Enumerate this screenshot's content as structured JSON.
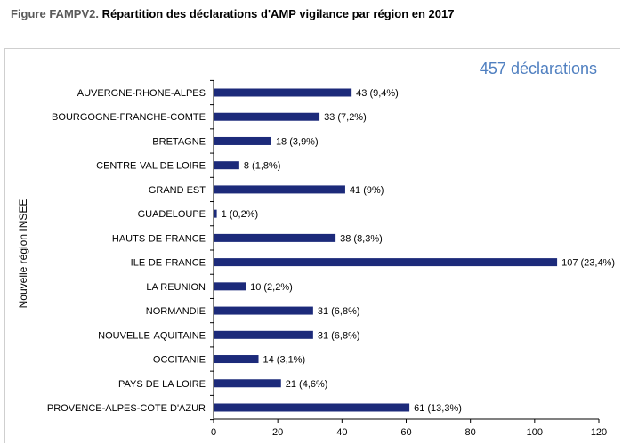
{
  "title": {
    "prefix": "Figure FAMPV2.",
    "text": "Répartition des déclarations d'AMP vigilance par région en 2017"
  },
  "colors": {
    "bar": "#1c2a7a",
    "annotation": "#4f7fc0",
    "axis": "#000000"
  },
  "chart_data": {
    "type": "bar",
    "orientation": "horizontal",
    "title": "",
    "ylabel": "Nouvelle  région INSEE",
    "xlabel": "",
    "xlim": [
      0,
      120
    ],
    "xticks": [
      0,
      20,
      40,
      60,
      80,
      100,
      120
    ],
    "grid": false,
    "annotation": "457 déclarations",
    "categories": [
      "AUVERGNE-RHONE-ALPES",
      "BOURGOGNE-FRANCHE-COMTE",
      "BRETAGNE",
      "CENTRE-VAL DE LOIRE",
      "GRAND EST",
      "GUADELOUPE",
      "HAUTS-DE-FRANCE",
      "ILE-DE-FRANCE",
      "LA REUNION",
      "NORMANDIE",
      "NOUVELLE-AQUITAINE",
      "OCCITANIE",
      "PAYS DE LA LOIRE",
      "PROVENCE-ALPES-COTE D'AZUR"
    ],
    "values": [
      43,
      33,
      18,
      8,
      41,
      1,
      38,
      107,
      10,
      31,
      31,
      14,
      21,
      61
    ],
    "data_labels": [
      "43 (9,4%)",
      "33 (7,2%)",
      "18 (3,9%)",
      "8 (1,8%)",
      "41 (9%)",
      "1 (0,2%)",
      "38 (8,3%)",
      "107 (23,4%)",
      "10 (2,2%)",
      "31 (6,8%)",
      "31 (6,8%)",
      "14 (3,1%)",
      "21 (4,6%)",
      "61 (13,3%)"
    ]
  }
}
